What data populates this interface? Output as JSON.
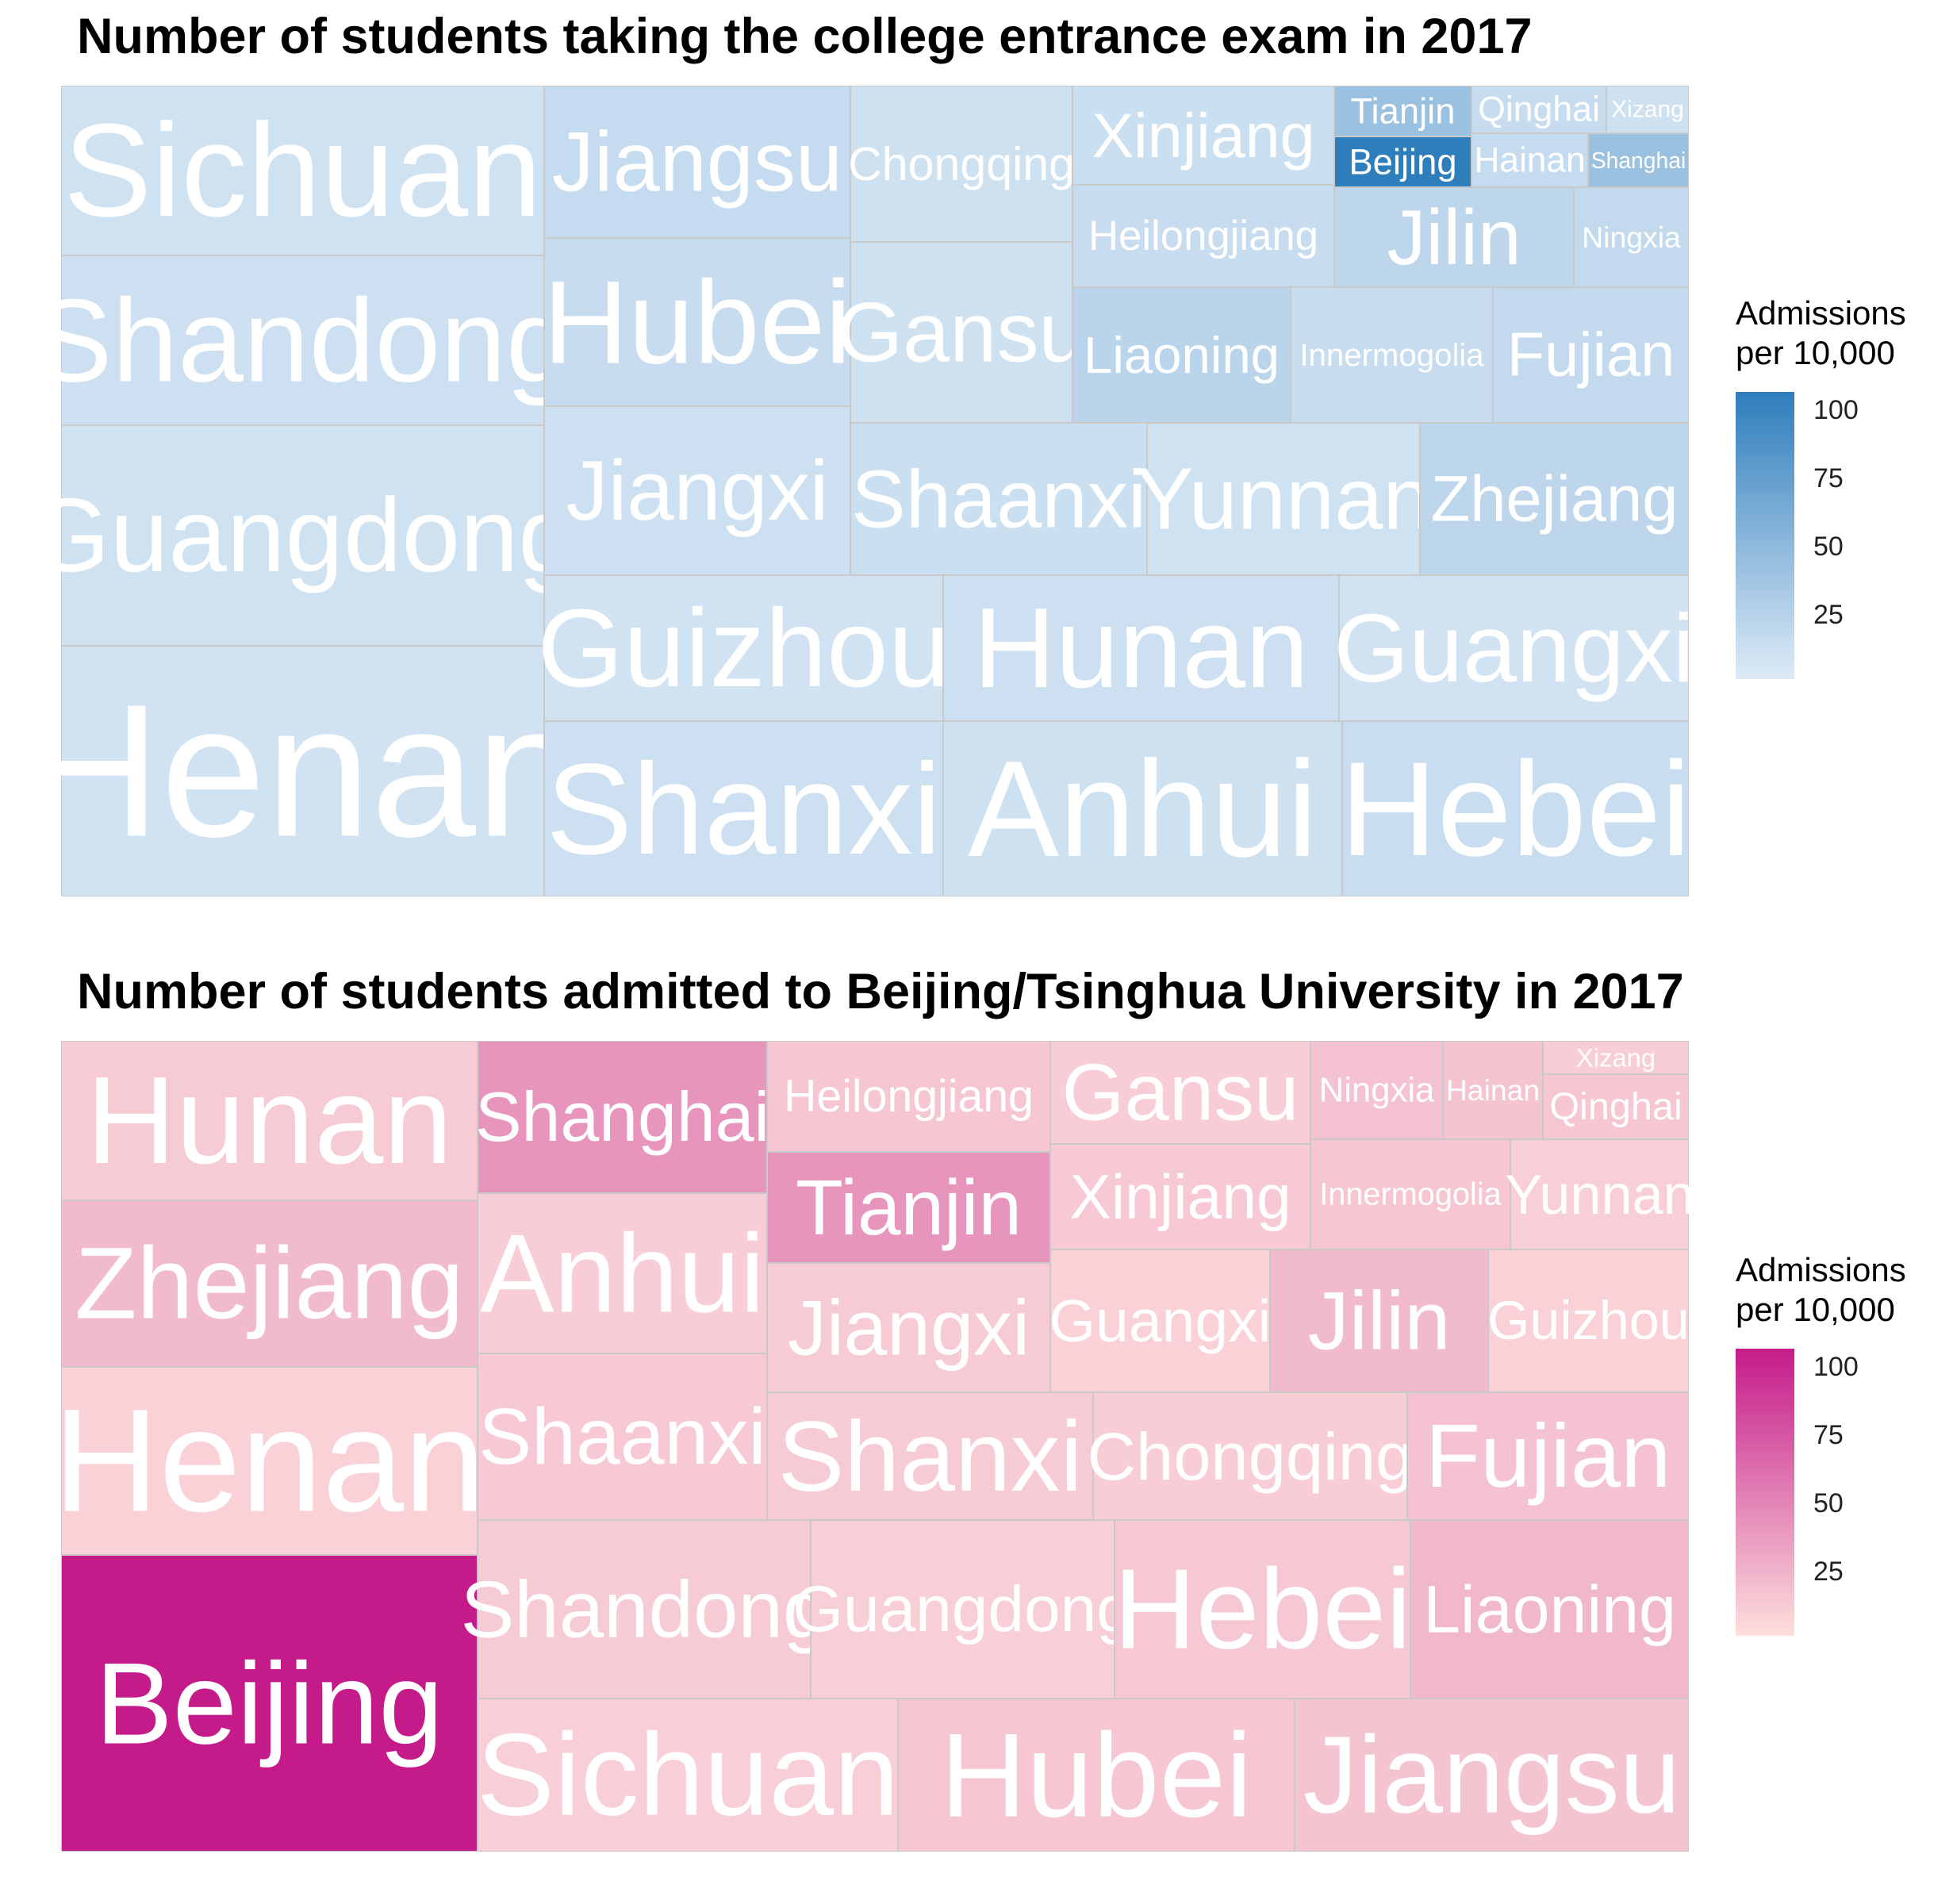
{
  "chart_data": [
    {
      "type": "treemap",
      "title": "Number of students taking the college entrance exam in 2017",
      "value_label": "Number of students taking the college entrance exam",
      "color_label": "Admissions per 10,000",
      "color_scale": {
        "low": "#deebf7",
        "high": "#2f7ebc",
        "domain": [
          0,
          105
        ],
        "breaks": [
          25,
          50,
          75,
          100
        ]
      },
      "tiles": [
        {
          "name": "Sichuan",
          "rel_size": 1.0,
          "color_value": 9
        },
        {
          "name": "Shandong",
          "rel_size": 1.0,
          "color_value": 11
        },
        {
          "name": "Guangdong",
          "rel_size": 1.31,
          "color_value": 9
        },
        {
          "name": "Henan",
          "rel_size": 1.49,
          "color_value": 8
        },
        {
          "name": "Jiangsu",
          "rel_size": 0.57,
          "color_value": 15
        },
        {
          "name": "Hubei",
          "rel_size": 0.62,
          "color_value": 14
        },
        {
          "name": "Jiangxi",
          "rel_size": 0.62,
          "color_value": 11
        },
        {
          "name": "Chongqing",
          "rel_size": 0.41,
          "color_value": 10
        },
        {
          "name": "Gansu",
          "rel_size": 0.47,
          "color_value": 10
        },
        {
          "name": "Xinjiang",
          "rel_size": 0.22,
          "color_value": 12
        },
        {
          "name": "Heilongjiang",
          "rel_size": 0.22,
          "color_value": 14
        },
        {
          "name": "Tianjin",
          "rel_size": 0.054,
          "color_value": 40
        },
        {
          "name": "Beijing",
          "rel_size": 0.054,
          "color_value": 105
        },
        {
          "name": "Qinghai",
          "rel_size": 0.035,
          "color_value": 14
        },
        {
          "name": "Xizang",
          "rel_size": 0.015,
          "color_value": 10
        },
        {
          "name": "Hainan",
          "rel_size": 0.05,
          "color_value": 15
        },
        {
          "name": "Shanghai",
          "rel_size": 0.034,
          "color_value": 40
        },
        {
          "name": "Jilin",
          "rel_size": 0.17,
          "color_value": 20
        },
        {
          "name": "Ningxia",
          "rel_size": 0.07,
          "color_value": 16
        },
        {
          "name": "Liaoning",
          "rel_size": 0.22,
          "color_value": 22
        },
        {
          "name": "Innermogolia",
          "rel_size": 0.2,
          "color_value": 14
        },
        {
          "name": "Fujian",
          "rel_size": 0.17,
          "color_value": 16
        },
        {
          "name": "Shaanxi",
          "rel_size": 0.35,
          "color_value": 12
        },
        {
          "name": "Yunnan",
          "rel_size": 0.32,
          "color_value": 9
        },
        {
          "name": "Zhejiang",
          "rel_size": 0.32,
          "color_value": 20
        },
        {
          "name": "Guizhou",
          "rel_size": 0.53,
          "color_value": 8
        },
        {
          "name": "Hunan",
          "rel_size": 0.53,
          "color_value": 11
        },
        {
          "name": "Guangxi",
          "rel_size": 0.4,
          "color_value": 8
        },
        {
          "name": "Shanxi",
          "rel_size": 0.65,
          "color_value": 11
        },
        {
          "name": "Anhui",
          "rel_size": 0.65,
          "color_value": 10
        },
        {
          "name": "Hebei",
          "rel_size": 0.57,
          "color_value": 13
        }
      ]
    },
    {
      "type": "treemap",
      "title": "Number of students admitted to Beijing/Tsinghua University in 2017",
      "value_label": "Number of students admitted to Beijing/Tsinghua University",
      "color_label": "Admissions per 10,000",
      "color_scale": {
        "low": "#fde0dd",
        "high": "#c51b8a",
        "domain": [
          0,
          105
        ],
        "breaks": [
          25,
          50,
          75,
          100
        ]
      },
      "tiles": [
        {
          "name": "Hunan",
          "rel_size": 0.69,
          "color_value": 11
        },
        {
          "name": "Zhejiang",
          "rel_size": 0.73,
          "color_value": 20
        },
        {
          "name": "Henan",
          "rel_size": 0.83,
          "color_value": 8
        },
        {
          "name": "Beijing",
          "rel_size": 1.3,
          "color_value": 105
        },
        {
          "name": "Shanghai",
          "rel_size": 0.46,
          "color_value": 40
        },
        {
          "name": "Anhui",
          "rel_size": 0.48,
          "color_value": 10
        },
        {
          "name": "Shaanxi",
          "rel_size": 0.5,
          "color_value": 12
        },
        {
          "name": "Heilongjiang",
          "rel_size": 0.32,
          "color_value": 14
        },
        {
          "name": "Tianjin",
          "rel_size": 0.33,
          "color_value": 40
        },
        {
          "name": "Jiangxi",
          "rel_size": 0.37,
          "color_value": 11
        },
        {
          "name": "Gansu",
          "rel_size": 0.23,
          "color_value": 10
        },
        {
          "name": "Xinjiang",
          "rel_size": 0.24,
          "color_value": 12
        },
        {
          "name": "Ningxia",
          "rel_size": 0.1,
          "color_value": 16
        },
        {
          "name": "Hainan",
          "rel_size": 0.09,
          "color_value": 15
        },
        {
          "name": "Xizang",
          "rel_size": 0.022,
          "color_value": 10
        },
        {
          "name": "Qinghai",
          "rel_size": 0.07,
          "color_value": 14
        },
        {
          "name": "Innermogolia",
          "rel_size": 0.14,
          "color_value": 14
        },
        {
          "name": "Yunnan",
          "rel_size": 0.11,
          "color_value": 9
        },
        {
          "name": "Guangxi",
          "rel_size": 0.24,
          "color_value": 8
        },
        {
          "name": "Jilin",
          "rel_size": 0.24,
          "color_value": 20
        },
        {
          "name": "Guizhou",
          "rel_size": 0.22,
          "color_value": 8
        },
        {
          "name": "Shanxi",
          "rel_size": 0.4,
          "color_value": 11
        },
        {
          "name": "Chongqing",
          "rel_size": 0.36,
          "color_value": 10
        },
        {
          "name": "Fujian",
          "rel_size": 0.31,
          "color_value": 16
        },
        {
          "name": "Shandong",
          "rel_size": 0.58,
          "color_value": 11
        },
        {
          "name": "Guangdong",
          "rel_size": 0.55,
          "color_value": 9
        },
        {
          "name": "Hebei",
          "rel_size": 0.48,
          "color_value": 13
        },
        {
          "name": "Liaoning",
          "rel_size": 0.51,
          "color_value": 22
        },
        {
          "name": "Sichuan",
          "rel_size": 0.55,
          "color_value": 9
        },
        {
          "name": "Hubei",
          "rel_size": 0.57,
          "color_value": 14
        },
        {
          "name": "Jiangsu",
          "rel_size": 0.57,
          "color_value": 15
        }
      ]
    }
  ],
  "legends": [
    {
      "title_line1": "Admissions",
      "title_line2": "per 10,000",
      "tick_labels": [
        "100",
        "75",
        "50",
        "25"
      ]
    },
    {
      "title_line1": "Admissions",
      "title_line2": "per 10,000",
      "tick_labels": [
        "100",
        "75",
        "50",
        "25"
      ]
    }
  ]
}
